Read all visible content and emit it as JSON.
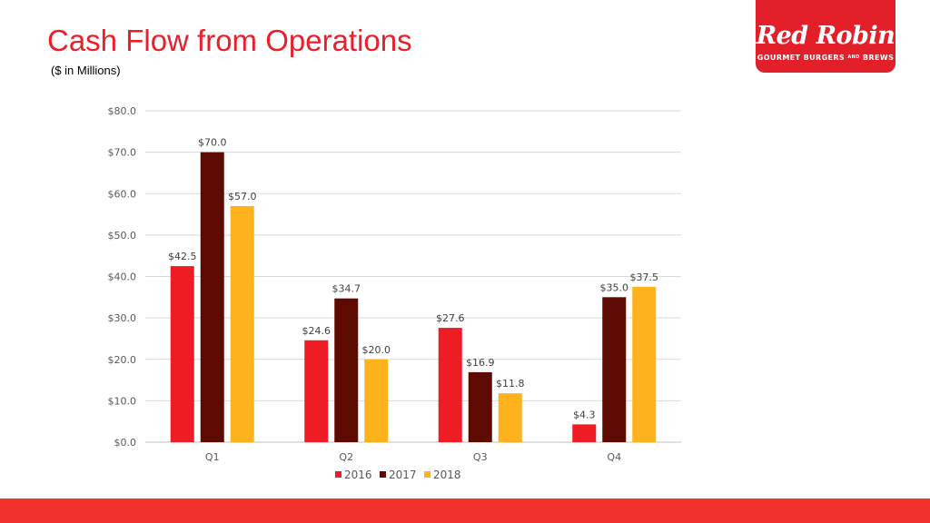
{
  "slide": {
    "title": "Cash Flow from Operations",
    "subtitle": "($ in Millions)"
  },
  "logo": {
    "wordmark": "Red Robin",
    "tagline_left": "GOURMET BURGERS",
    "tagline_amp": "AND",
    "tagline_right": "BREWS",
    "color": "#e3202a"
  },
  "footer": {
    "color": "#f2302c"
  },
  "chart_data": {
    "type": "bar",
    "categories": [
      "Q1",
      "Q2",
      "Q3",
      "Q4"
    ],
    "series": [
      {
        "name": "2016",
        "color": "#ee1c25",
        "values": [
          42.5,
          24.6,
          27.6,
          4.3
        ],
        "labels": [
          "$42.5",
          "$24.6",
          "$27.6",
          "$4.3"
        ]
      },
      {
        "name": "2017",
        "color": "#5c0a02",
        "values": [
          70.0,
          34.7,
          16.9,
          35.0
        ],
        "labels": [
          "$70.0",
          "$34.7",
          "$16.9",
          "$35.0"
        ]
      },
      {
        "name": "2018",
        "color": "#fdb21e",
        "values": [
          57.0,
          20.0,
          11.8,
          37.5
        ],
        "labels": [
          "$57.0",
          "$20.0",
          "$11.8",
          "$37.5"
        ]
      }
    ],
    "ylim": [
      0,
      80
    ],
    "yticks": [
      0,
      10,
      20,
      30,
      40,
      50,
      60,
      70,
      80
    ],
    "ytick_labels": [
      "$0.0",
      "$10.0",
      "$20.0",
      "$30.0",
      "$40.0",
      "$50.0",
      "$60.0",
      "$70.0",
      "$80.0"
    ],
    "grid": true,
    "legend_position": "bottom-center"
  }
}
